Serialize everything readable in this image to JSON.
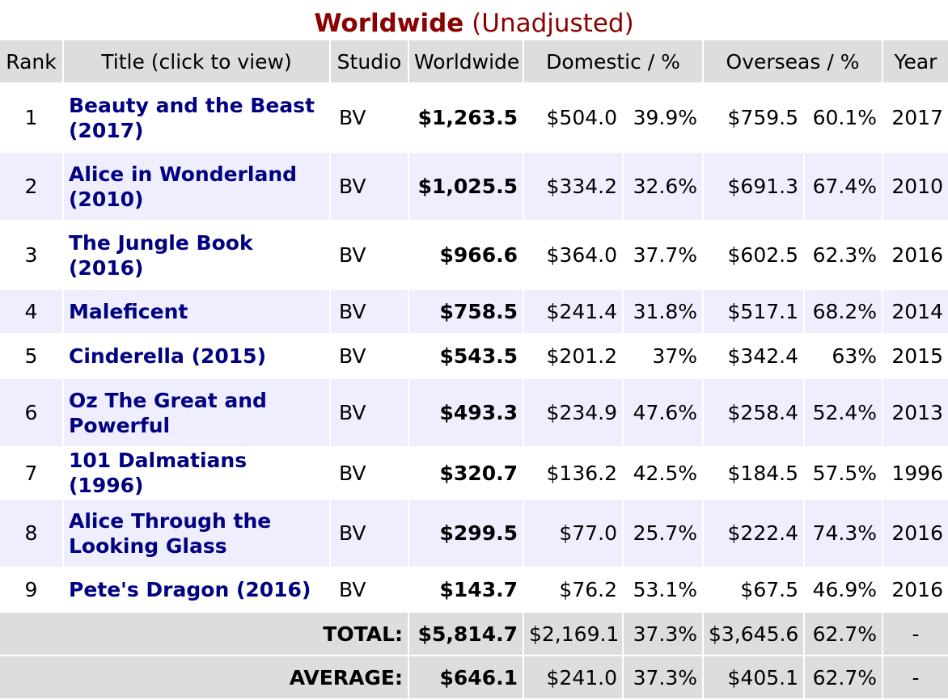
{
  "title": {
    "bold": "Worldwide",
    "normal": "(Unadjusted)"
  },
  "headers": {
    "rank": "Rank",
    "title": "Title (click to view)",
    "studio": "Studio",
    "worldwide": "Worldwide",
    "domestic": "Domestic / %",
    "overseas": "Overseas / %",
    "year": "Year"
  },
  "rows": [
    {
      "rank": "1",
      "title": "Beauty and the Beast (2017)",
      "studio": "BV",
      "worldwide": "$1,263.5",
      "domestic": "$504.0",
      "domestic_pct": "39.9%",
      "overseas": "$759.5",
      "overseas_pct": "60.1%",
      "year": "2017"
    },
    {
      "rank": "2",
      "title": "Alice in Wonderland (2010)",
      "studio": "BV",
      "worldwide": "$1,025.5",
      "domestic": "$334.2",
      "domestic_pct": "32.6%",
      "overseas": "$691.3",
      "overseas_pct": "67.4%",
      "year": "2010"
    },
    {
      "rank": "3",
      "title": "The Jungle Book (2016)",
      "studio": "BV",
      "worldwide": "$966.6",
      "domestic": "$364.0",
      "domestic_pct": "37.7%",
      "overseas": "$602.5",
      "overseas_pct": "62.3%",
      "year": "2016"
    },
    {
      "rank": "4",
      "title": "Maleficent",
      "studio": "BV",
      "worldwide": "$758.5",
      "domestic": "$241.4",
      "domestic_pct": "31.8%",
      "overseas": "$517.1",
      "overseas_pct": "68.2%",
      "year": "2014"
    },
    {
      "rank": "5",
      "title": "Cinderella (2015)",
      "studio": "BV",
      "worldwide": "$543.5",
      "domestic": "$201.2",
      "domestic_pct": "37%",
      "overseas": "$342.4",
      "overseas_pct": "63%",
      "year": "2015"
    },
    {
      "rank": "6",
      "title": "Oz The Great and Powerful",
      "studio": "BV",
      "worldwide": "$493.3",
      "domestic": "$234.9",
      "domestic_pct": "47.6%",
      "overseas": "$258.4",
      "overseas_pct": "52.4%",
      "year": "2013"
    },
    {
      "rank": "7",
      "title": "101 Dalmatians (1996)",
      "studio": "BV",
      "worldwide": "$320.7",
      "domestic": "$136.2",
      "domestic_pct": "42.5%",
      "overseas": "$184.5",
      "overseas_pct": "57.5%",
      "year": "1996"
    },
    {
      "rank": "8",
      "title": "Alice Through the Looking Glass",
      "studio": "BV",
      "worldwide": "$299.5",
      "domestic": "$77.0",
      "domestic_pct": "25.7%",
      "overseas": "$222.4",
      "overseas_pct": "74.3%",
      "year": "2016"
    },
    {
      "rank": "9",
      "title": "Pete's Dragon (2016)",
      "studio": "BV",
      "worldwide": "$143.7",
      "domestic": "$76.2",
      "domestic_pct": "53.1%",
      "overseas": "$67.5",
      "overseas_pct": "46.9%",
      "year": "2016"
    }
  ],
  "total": {
    "label": "TOTAL:",
    "worldwide": "$5,814.7",
    "domestic": "$2,169.1",
    "domestic_pct": "37.3%",
    "overseas": "$3,645.6",
    "overseas_pct": "62.7%",
    "year": "-"
  },
  "average": {
    "label": "AVERAGE:",
    "worldwide": "$646.1",
    "domestic": "$241.0",
    "domestic_pct": "37.3%",
    "overseas": "$405.1",
    "overseas_pct": "62.7%",
    "year": "-"
  }
}
